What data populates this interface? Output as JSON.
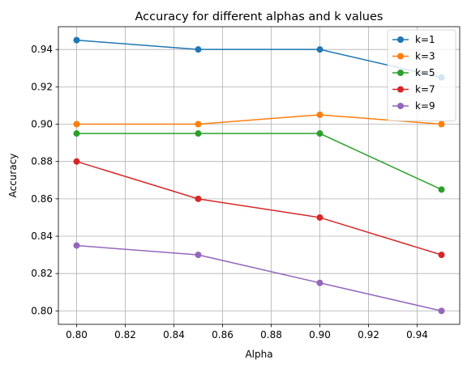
{
  "chart_data": {
    "type": "line",
    "title": "Accuracy for different alphas and k values",
    "xlabel": "Alpha",
    "ylabel": "Accuracy",
    "x": [
      0.8,
      0.85,
      0.9,
      0.95
    ],
    "xlim": [
      0.7925,
      0.9575
    ],
    "ylim": [
      0.7928,
      0.9522
    ],
    "xticks": [
      0.8,
      0.82,
      0.84,
      0.86,
      0.88,
      0.9,
      0.92,
      0.94
    ],
    "xtick_labels": [
      "0.80",
      "0.82",
      "0.84",
      "0.86",
      "0.88",
      "0.90",
      "0.92",
      "0.94"
    ],
    "yticks": [
      0.8,
      0.82,
      0.84,
      0.86,
      0.88,
      0.9,
      0.92,
      0.94
    ],
    "ytick_labels": [
      "0.80",
      "0.82",
      "0.84",
      "0.86",
      "0.88",
      "0.90",
      "0.92",
      "0.94"
    ],
    "grid": true,
    "legend_position": "top-right",
    "series": [
      {
        "name": "k=1",
        "color": "#1f77b4",
        "values": [
          0.945,
          0.94,
          0.94,
          0.925
        ]
      },
      {
        "name": "k=3",
        "color": "#ff7f0e",
        "values": [
          0.9,
          0.9,
          0.905,
          0.9
        ]
      },
      {
        "name": "k=5",
        "color": "#2ca02c",
        "values": [
          0.895,
          0.895,
          0.895,
          0.865
        ]
      },
      {
        "name": "k=7",
        "color": "#d62728",
        "values": [
          0.88,
          0.86,
          0.85,
          0.83
        ]
      },
      {
        "name": "k=9",
        "color": "#9467bd",
        "values": [
          0.835,
          0.83,
          0.815,
          0.8
        ]
      }
    ]
  }
}
